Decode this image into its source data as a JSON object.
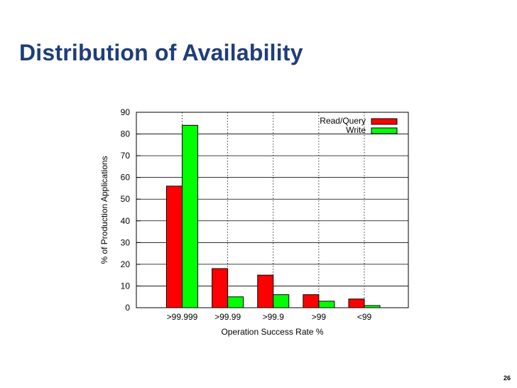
{
  "slide": {
    "title": "Distribution of Availability",
    "page_number": "26"
  },
  "colors": {
    "title": "#1f3d7a",
    "read_query": "#ff0000",
    "write": "#00ff00"
  },
  "chart_data": {
    "type": "bar",
    "title": "",
    "xlabel": "Operation Success Rate %",
    "ylabel": "% of Production Applications",
    "ylim": [
      0,
      90
    ],
    "yticks": [
      0,
      10,
      20,
      30,
      40,
      50,
      60,
      70,
      80,
      90
    ],
    "categories": [
      ">99.999",
      ">99.99",
      ">99.9",
      ">99",
      "<99"
    ],
    "series": [
      {
        "name": "Read/Query",
        "color": "#ff0000",
        "values": [
          56,
          18,
          15,
          6,
          4
        ]
      },
      {
        "name": "Write",
        "color": "#00ff00",
        "values": [
          84,
          5,
          6,
          3,
          1
        ]
      }
    ],
    "legend_position": "top-right",
    "grid": true
  }
}
